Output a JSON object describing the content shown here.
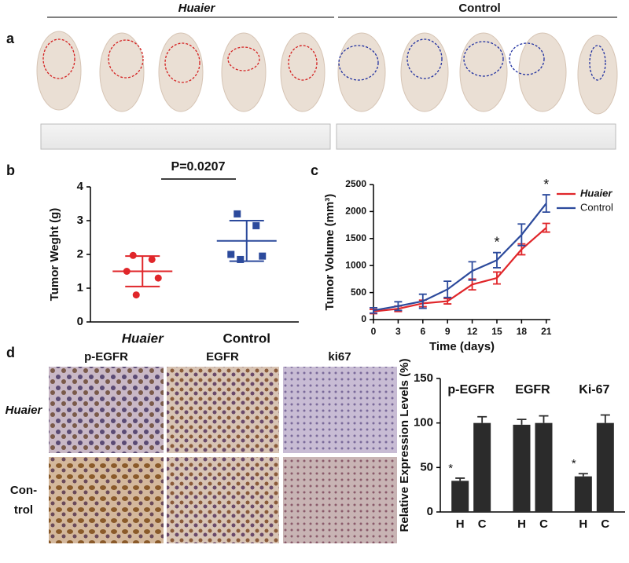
{
  "panel_labels": [
    "a",
    "b",
    "c",
    "d"
  ],
  "photo_groups": [
    "Huaier",
    "Control"
  ],
  "ihc": {
    "columns": [
      "p-EGFR",
      "EGFR",
      "ki67"
    ],
    "rows": [
      [
        "Huaier"
      ],
      [
        "Con-",
        "trol"
      ]
    ]
  },
  "chart_data": [
    {
      "type": "dot",
      "ylabel": "Tumor Weght (g)",
      "annotation": "P=0.0207",
      "ylim": [
        0,
        4
      ],
      "yticks": [
        0,
        1,
        2,
        3,
        4
      ],
      "series": [
        {
          "name": "Huaier",
          "color": "#e0262a",
          "marker": "circle",
          "values": [
            1.97,
            1.85,
            1.5,
            1.3,
            0.8
          ],
          "mean": 1.5,
          "sd": 0.45
        },
        {
          "name": "Control",
          "color": "#2c4a9c",
          "marker": "square",
          "values": [
            3.2,
            2.85,
            2.0,
            1.95,
            1.85
          ],
          "mean": 2.4,
          "sd": 0.6
        }
      ]
    },
    {
      "type": "line",
      "xlabel": "Time (days)",
      "ylabel": "Tumor Volume (mm³)",
      "x": [
        0,
        3,
        6,
        9,
        12,
        15,
        18,
        21
      ],
      "xlim": [
        0,
        21.5
      ],
      "xticks": [
        0,
        3,
        6,
        9,
        12,
        15,
        18,
        21
      ],
      "ylim": [
        0,
        2500
      ],
      "yticks": [
        0,
        500,
        1000,
        1500,
        2000,
        2500
      ],
      "legend": "upper right",
      "significance_labels": [
        null,
        null,
        null,
        null,
        null,
        "*",
        null,
        "*"
      ],
      "series": [
        {
          "name": "Huaier",
          "color": "#e0262a",
          "values": [
            150,
            200,
            300,
            340,
            650,
            770,
            1300,
            1700
          ],
          "errors": [
            40,
            50,
            60,
            50,
            100,
            110,
            100,
            80
          ]
        },
        {
          "name": "Control",
          "color": "#2c4a9c",
          "values": [
            170,
            250,
            340,
            560,
            900,
            1100,
            1570,
            2150
          ],
          "errors": [
            50,
            80,
            130,
            150,
            170,
            140,
            200,
            160
          ]
        }
      ]
    },
    {
      "type": "bar",
      "ylabel": "Relative Expression Levels (%)",
      "group_labels": [
        "p-EGFR",
        "EGFR",
        "Ki-67"
      ],
      "categories": [
        "H",
        "C",
        "H",
        "C",
        "H",
        "C"
      ],
      "values": [
        35,
        100,
        98,
        100,
        40,
        100
      ],
      "errors": [
        3,
        7,
        6,
        8,
        3,
        9
      ],
      "significance_labels": [
        "*",
        null,
        null,
        null,
        "*",
        null
      ],
      "color": "#2b2b2b",
      "ylim": [
        0,
        150
      ],
      "yticks": [
        0,
        50,
        100,
        150
      ]
    }
  ]
}
